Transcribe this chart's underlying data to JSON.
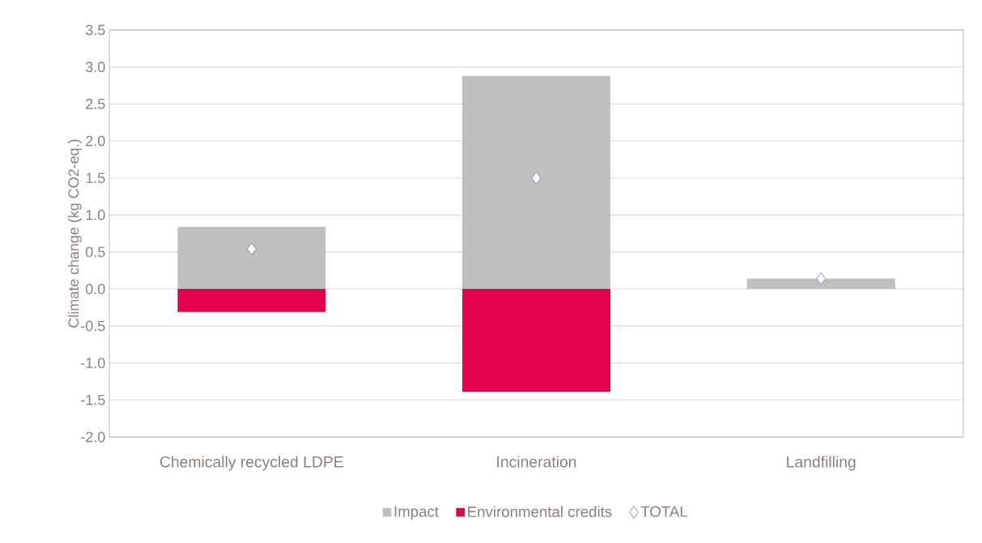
{
  "chart_data": {
    "type": "bar",
    "stacked": true,
    "categories": [
      "Chemically recycled LDPE",
      "Incineration",
      "Landfilling"
    ],
    "ylabel": "Climate change (kg CO2-eq.)",
    "ylim": [
      -2,
      3.5
    ],
    "yticks": [
      {
        "value": -2,
        "label": "-2.0"
      },
      -1.5,
      {
        "value": -1,
        "label": "-1.0"
      },
      -0.5,
      {
        "value": 0,
        "label": "0.0"
      },
      0.5,
      {
        "value": 1,
        "label": "1.0"
      },
      1.5,
      {
        "value": 2,
        "label": "2.0"
      },
      2.5,
      {
        "value": 3,
        "label": "3.0"
      },
      3.5
    ],
    "grid": "y",
    "legend": "bottom",
    "series": [
      {
        "name": "Impact",
        "color": "#bfbfbf",
        "values": [
          0.84,
          2.88,
          0.14
        ]
      },
      {
        "name": "Environmental credits",
        "color": "#e2004a",
        "values": [
          -0.31,
          -1.39,
          null
        ]
      },
      {
        "name": "TOTAL",
        "type": "scatter",
        "marker": "diamond",
        "color": "#8e7cc3",
        "x": [
          "Chemically recycled LDPE",
          "Incineration",
          "Landfilling"
        ],
        "values": [
          0.54,
          1.5,
          0.14
        ]
      }
    ]
  }
}
